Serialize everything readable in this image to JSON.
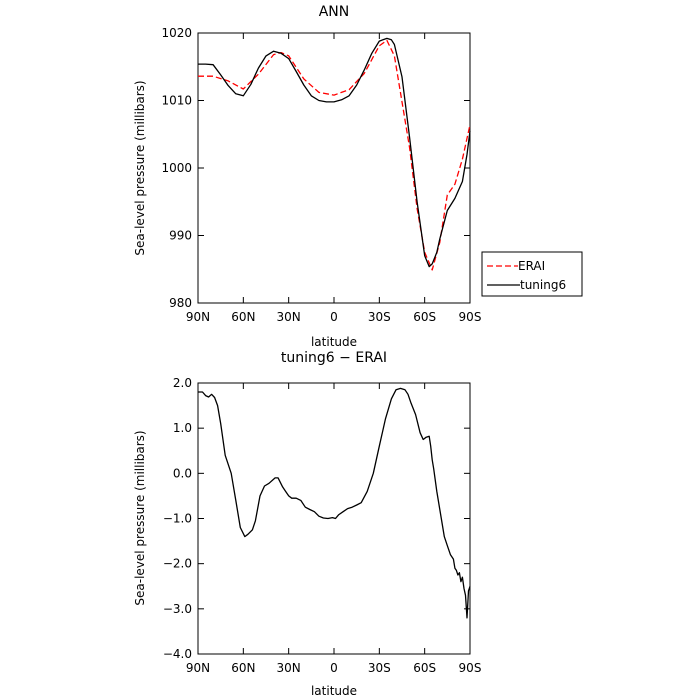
{
  "chart_data": [
    {
      "type": "line",
      "title": "ANN",
      "xlabel": "latitude",
      "ylabel": "Sea-level pressure (millibars)",
      "xlim": [
        90,
        -90
      ],
      "ylim": [
        980,
        1020
      ],
      "x_ticks": [
        90,
        60,
        30,
        0,
        -30,
        -60,
        -90
      ],
      "x_tick_labels": [
        "90N",
        "60N",
        "30N",
        "0",
        "30S",
        "60S",
        "90S"
      ],
      "y_ticks": [
        980,
        990,
        1000,
        1010,
        1020
      ],
      "y_tick_labels": [
        "980",
        "990",
        "1000",
        "1010",
        "1020"
      ],
      "grid": false,
      "legend_position": "right",
      "series": [
        {
          "name": "ERAI",
          "color": "#ff0000",
          "dash": true,
          "x": [
            90,
            80,
            70,
            60,
            50,
            40,
            35,
            30,
            20,
            10,
            0,
            -10,
            -20,
            -30,
            -35,
            -40,
            -50,
            -55,
            -60,
            -65,
            -70,
            -75,
            -80,
            -85,
            -90
          ],
          "y": [
            1013.6,
            1013.6,
            1012.9,
            1011.7,
            1013.9,
            1016.8,
            1017.1,
            1016.6,
            1013.2,
            1011.2,
            1010.8,
            1011.6,
            1014.0,
            1018.1,
            1018.9,
            1016.6,
            1003.0,
            994.0,
            987.5,
            984.9,
            989.0,
            996.0,
            997.6,
            1001.3,
            1006.4
          ]
        },
        {
          "name": "tuning6",
          "color": "#000000",
          "dash": false,
          "x": [
            90,
            85,
            80,
            75,
            70,
            65,
            60,
            55,
            50,
            45,
            40,
            35,
            30,
            25,
            20,
            15,
            10,
            5,
            0,
            -5,
            -10,
            -15,
            -20,
            -25,
            -30,
            -35,
            -38,
            -40,
            -45,
            -50,
            -55,
            -60,
            -63,
            -65,
            -68,
            -70,
            -75,
            -80,
            -85,
            -88,
            -90
          ],
          "y": [
            1015.4,
            1015.4,
            1015.3,
            1013.8,
            1012.2,
            1011.0,
            1010.7,
            1012.4,
            1014.8,
            1016.6,
            1017.3,
            1017.0,
            1016.2,
            1014.3,
            1012.3,
            1010.7,
            1010.0,
            1009.8,
            1009.8,
            1010.1,
            1010.7,
            1012.3,
            1014.5,
            1017.0,
            1018.8,
            1019.2,
            1019.0,
            1018.3,
            1013.5,
            1004.5,
            995.0,
            987.0,
            985.4,
            985.8,
            987.5,
            989.5,
            993.7,
            995.5,
            998.0,
            1002.0,
            1005.5
          ]
        }
      ]
    },
    {
      "type": "line",
      "title": "tuning6 − ERAI",
      "xlabel": "latitude",
      "ylabel": "Sea-level pressure (millibars)",
      "xlim": [
        90,
        -90
      ],
      "ylim": [
        -4.0,
        2.0
      ],
      "x_ticks": [
        90,
        60,
        30,
        0,
        -30,
        -60,
        -90
      ],
      "x_tick_labels": [
        "90N",
        "60N",
        "30N",
        "0",
        "30S",
        "60S",
        "90S"
      ],
      "y_ticks": [
        -4.0,
        -3.0,
        -2.0,
        -1.0,
        0.0,
        1.0,
        2.0
      ],
      "y_tick_labels": [
        "−4.0",
        "−3.0",
        "−2.0",
        "−1.0",
        "0.0",
        "1.0",
        "2.0"
      ],
      "grid": false,
      "series": [
        {
          "color": "#000000",
          "dash": false,
          "x": [
            90,
            87,
            85,
            83,
            81,
            79,
            77,
            75,
            72,
            68,
            65,
            62,
            59,
            57,
            54,
            52,
            49,
            46,
            43,
            39,
            37,
            34,
            32,
            30,
            28,
            25,
            22,
            19,
            16,
            13,
            10,
            7,
            4,
            1,
            -1,
            -3,
            -6,
            -9,
            -12,
            -15,
            -18,
            -22,
            -26,
            -30,
            -34,
            -38,
            -41,
            -44,
            -47,
            -49,
            -51,
            -54,
            -57,
            -59,
            -61,
            -63,
            -64,
            -65,
            -66,
            -68,
            -71,
            -73,
            -75,
            -77,
            -79,
            -80,
            -81,
            -82,
            -83,
            -84,
            -85,
            -86,
            -87,
            -88,
            -89,
            -90
          ],
          "y": [
            1.8,
            1.8,
            1.72,
            1.69,
            1.75,
            1.68,
            1.5,
            1.1,
            0.4,
            0.0,
            -0.6,
            -1.2,
            -1.4,
            -1.35,
            -1.25,
            -1.05,
            -0.5,
            -0.28,
            -0.22,
            -0.1,
            -0.1,
            -0.3,
            -0.4,
            -0.5,
            -0.55,
            -0.55,
            -0.6,
            -0.75,
            -0.8,
            -0.85,
            -0.95,
            -0.99,
            -1.0,
            -0.98,
            -1.0,
            -0.92,
            -0.85,
            -0.78,
            -0.75,
            -0.7,
            -0.65,
            -0.4,
            0.0,
            0.6,
            1.2,
            1.65,
            1.85,
            1.88,
            1.85,
            1.75,
            1.55,
            1.3,
            0.9,
            0.75,
            0.8,
            0.82,
            0.6,
            0.3,
            0.1,
            -0.4,
            -1.0,
            -1.4,
            -1.6,
            -1.8,
            -1.9,
            -2.1,
            -2.15,
            -2.25,
            -2.2,
            -2.4,
            -2.3,
            -2.55,
            -2.7,
            -3.2,
            -2.6,
            -2.5
          ]
        }
      ]
    }
  ]
}
